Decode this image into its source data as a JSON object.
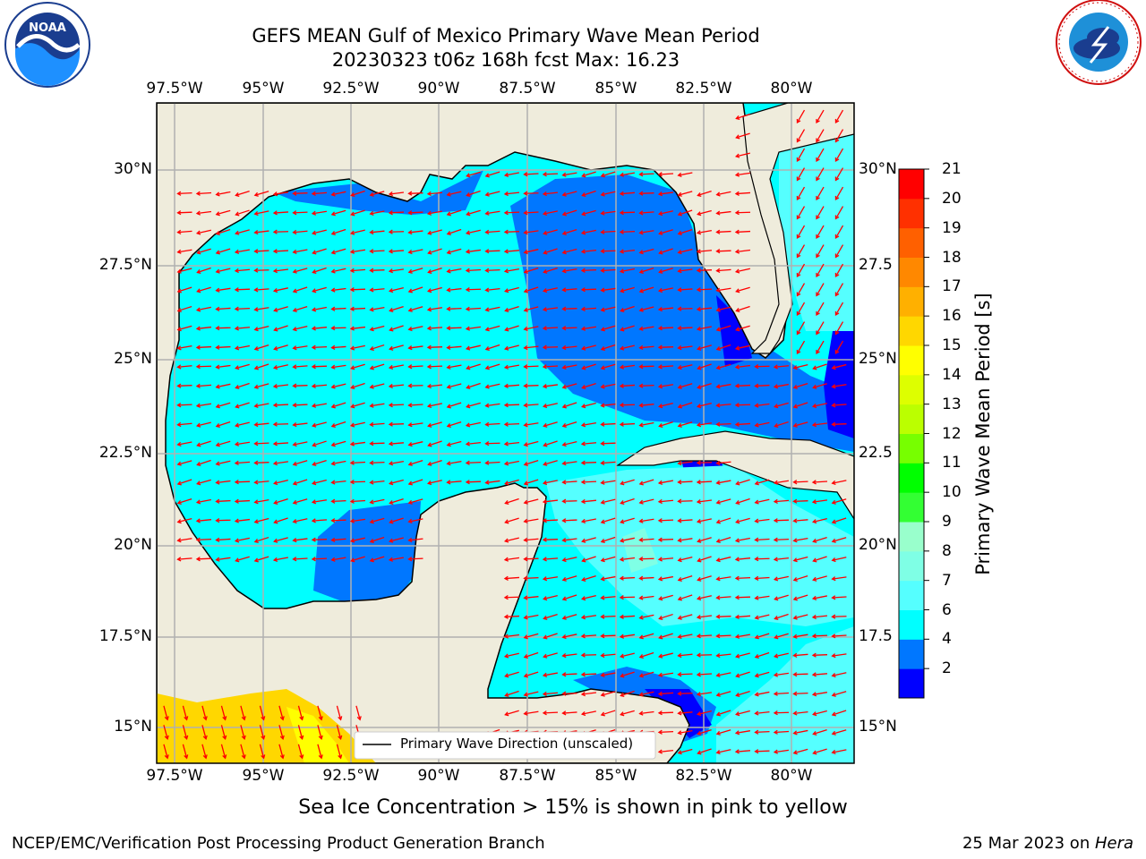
{
  "header": {
    "title_line1": "GEFS MEAN Gulf of Mexico Primary Wave Mean Period",
    "title_line2": "20230323 t06z 168h fcst   Max: 16.23"
  },
  "logos": {
    "left": {
      "text": "NOAA",
      "ring_text": "NATIONAL OCEANIC AND ATMOSPHERIC ADMINISTRATION · U.S. DEPARTMENT OF COMMERCE"
    },
    "right": {
      "ring_text": "NATIONAL WEATHER SERVICE"
    }
  },
  "map": {
    "lon_ticks": [
      "97.5°W",
      "95°W",
      "92.5°W",
      "90°W",
      "87.5°W",
      "85°W",
      "82.5°W",
      "80°W"
    ],
    "lat_ticks_left": [
      "30°N",
      "27.5°N",
      "25°N",
      "22.5°N",
      "20°N",
      "17.5°N",
      "15°N"
    ],
    "lat_ticks_right": [
      "30°N",
      "27.5",
      "25°N",
      "22.5",
      "20°N",
      "17.5",
      "15°N"
    ],
    "legend_label": "Primary Wave Direction (unscaled)",
    "colors": {
      "land": "#efecdc",
      "coast": "#000000",
      "grid": "#b0b0b0",
      "arrow": "#ff0000"
    }
  },
  "colorbar": {
    "label": "Primary Wave Mean Period [s]",
    "tick_labels": [
      "21",
      "20",
      "19",
      "18",
      "17",
      "16",
      "15",
      "14",
      "13",
      "12",
      "11",
      "10",
      "9",
      "8",
      "7",
      "6",
      "4",
      "2"
    ],
    "colors": [
      "#0000ff",
      "#0077ff",
      "#00ffff",
      "#55ffff",
      "#7fffe5",
      "#99ffcc",
      "#33ff33",
      "#00ff00",
      "#77ff00",
      "#bbff00",
      "#ddff00",
      "#ffff00",
      "#ffd700",
      "#ffb000",
      "#ff8800",
      "#ff6000",
      "#ff3000",
      "#ff0000"
    ]
  },
  "footer": {
    "note": "Sea Ice Concentration > 15% is shown in pink to yellow",
    "left": "NCEP/EMC/Verification Post Processing Product Generation Branch",
    "right_prefix": "25 Mar 2023 on ",
    "right_host": "Hera"
  }
}
